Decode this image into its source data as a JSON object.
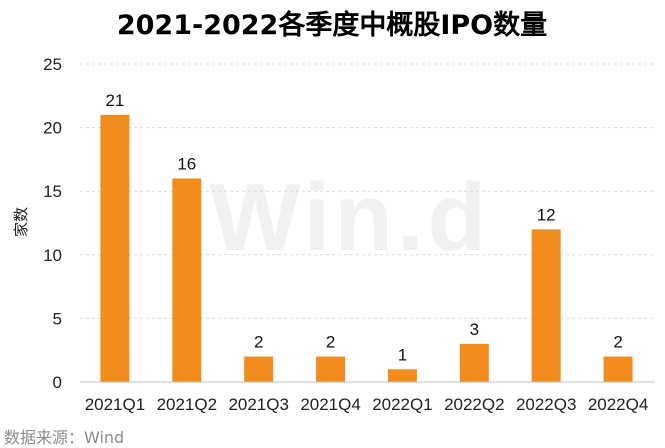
{
  "source_text": "数据来源：Wind",
  "watermark_text": "Win.d",
  "colors": {
    "bar": "#F28C1C",
    "grid": "#d9d9d9",
    "axis": "#bfbfbf"
  },
  "chart_data": {
    "type": "bar",
    "title": "2021-2022各季度中概股IPO数量",
    "xlabel": "",
    "ylabel": "家数",
    "categories": [
      "2021Q1",
      "2021Q2",
      "2021Q3",
      "2021Q4",
      "2022Q1",
      "2022Q2",
      "2022Q3",
      "2022Q4"
    ],
    "values": [
      21,
      16,
      2,
      2,
      1,
      3,
      12,
      2
    ],
    "ylim": [
      0,
      25
    ],
    "yticks": [
      0,
      5,
      10,
      15,
      20,
      25
    ],
    "grid": true,
    "data_labels": true
  }
}
